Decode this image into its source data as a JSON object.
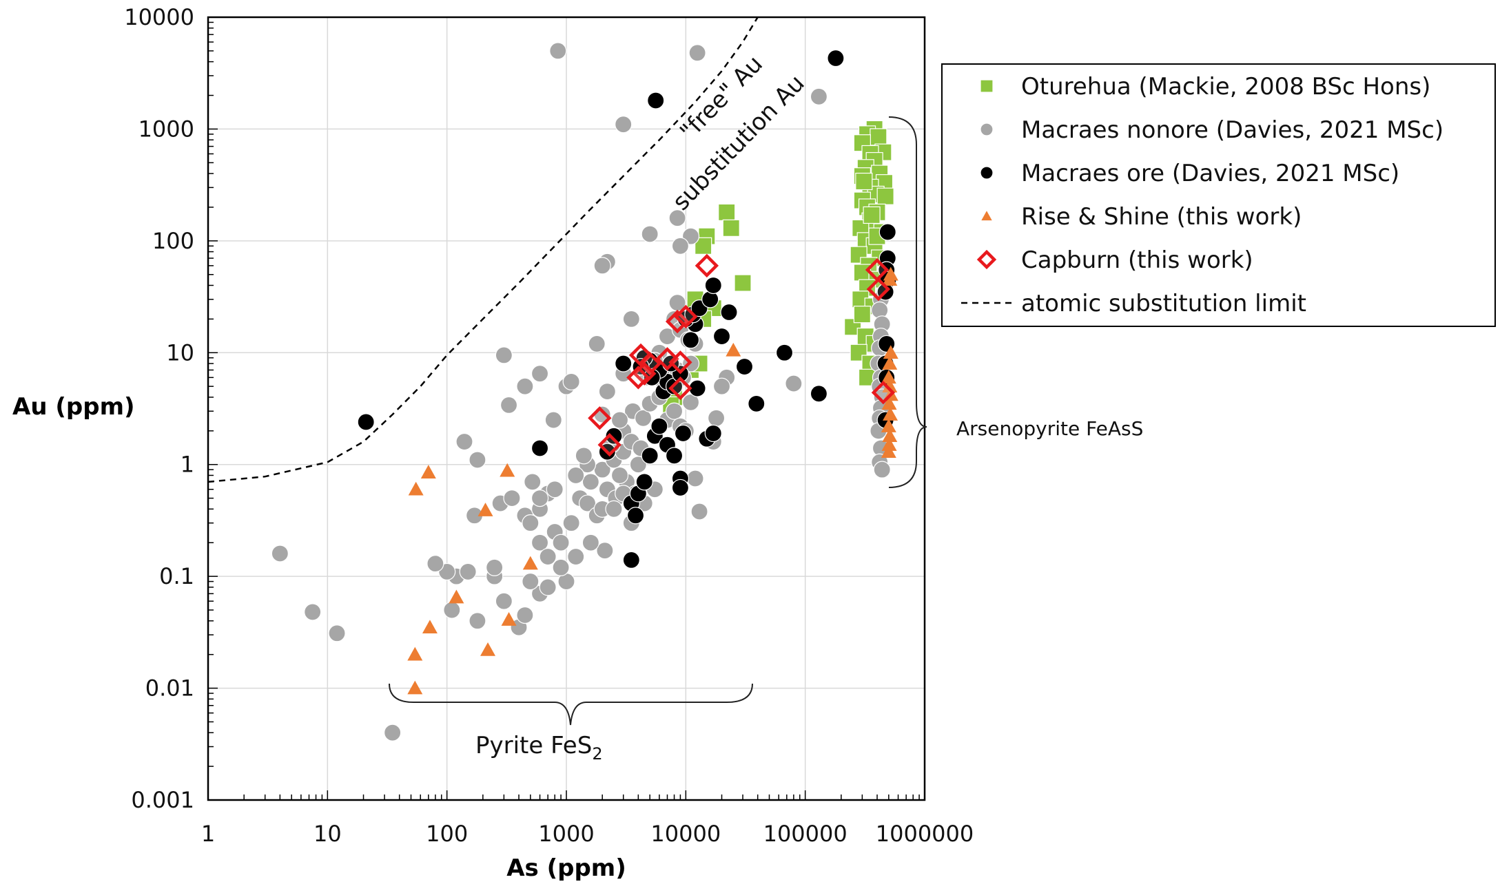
{
  "chart_data": {
    "type": "scatter",
    "title": "",
    "xlabel": "As (ppm)",
    "ylabel": "Au (ppm)",
    "xscale": "log",
    "yscale": "log",
    "xlim": [
      1,
      1000000
    ],
    "ylim": [
      0.001,
      10000
    ],
    "grid": true,
    "legend_position": "top-right",
    "x_tick_labels": [
      "1",
      "10",
      "100",
      "1000",
      "10000",
      "100000",
      "1000000"
    ],
    "y_tick_labels": [
      "0.001",
      "0.01",
      "0.1",
      "1",
      "10",
      "100",
      "1000",
      "10000"
    ],
    "annotations": {
      "free_au": "\"free\" Au",
      "substitution_au": "substitution Au",
      "arsenopyrite": "Arsenopyrite FeAsS",
      "pyrite_main": "Pyrite FeS",
      "pyrite_sub": "2"
    },
    "series": [
      {
        "name": "Oturehua (Mackie, 2008 BSc Hons)",
        "marker": "square",
        "color": "#8dc63f",
        "points": [
          [
            22000,
            180
          ],
          [
            24000,
            130
          ],
          [
            15000,
            110
          ],
          [
            14000,
            90
          ],
          [
            30000,
            42
          ],
          [
            17000,
            25
          ],
          [
            14000,
            20
          ],
          [
            12000,
            30
          ],
          [
            8000,
            4
          ],
          [
            7500,
            3.4
          ],
          [
            11000,
            7
          ],
          [
            13000,
            8
          ],
          [
            380000,
            1000
          ],
          [
            330000,
            900
          ],
          [
            410000,
            850
          ],
          [
            300000,
            750
          ],
          [
            450000,
            620
          ],
          [
            350000,
            600
          ],
          [
            380000,
            520
          ],
          [
            320000,
            450
          ],
          [
            420000,
            400
          ],
          [
            300000,
            380
          ],
          [
            460000,
            330
          ],
          [
            350000,
            300
          ],
          [
            390000,
            260
          ],
          [
            300000,
            230
          ],
          [
            470000,
            250
          ],
          [
            330000,
            200
          ],
          [
            400000,
            180
          ],
          [
            350000,
            150
          ],
          [
            290000,
            130
          ],
          [
            440000,
            120
          ],
          [
            320000,
            100
          ],
          [
            380000,
            90
          ],
          [
            280000,
            75
          ],
          [
            420000,
            70
          ],
          [
            340000,
            60
          ],
          [
            300000,
            52
          ],
          [
            400000,
            45
          ],
          [
            330000,
            38
          ],
          [
            290000,
            30
          ],
          [
            370000,
            26
          ],
          [
            250000,
            17
          ],
          [
            320000,
            14
          ],
          [
            380000,
            12
          ],
          [
            280000,
            10
          ],
          [
            350000,
            8
          ],
          [
            330000,
            6
          ],
          [
            300000,
            22
          ],
          [
            360000,
            170
          ],
          [
            310000,
            340
          ],
          [
            400000,
            110
          ]
        ]
      },
      {
        "name": "Macraes nonore (Davies, 2021 MSc)",
        "marker": "circle",
        "color": "#a6a6a6",
        "points": [
          [
            850,
            5000
          ],
          [
            12500,
            4800
          ],
          [
            3000,
            1100
          ],
          [
            130000,
            1950
          ],
          [
            5000,
            115
          ],
          [
            8500,
            160
          ],
          [
            11000,
            110
          ],
          [
            2200,
            65
          ],
          [
            2000,
            60
          ],
          [
            9000,
            90
          ],
          [
            4,
            0.16
          ],
          [
            7.5,
            0.048
          ],
          [
            12,
            0.031
          ],
          [
            35,
            0.004
          ],
          [
            140,
            1.6
          ],
          [
            180,
            1.1
          ],
          [
            170,
            0.35
          ],
          [
            120,
            0.1
          ],
          [
            100,
            0.11
          ],
          [
            80,
            0.13
          ],
          [
            150,
            0.11
          ],
          [
            250,
            0.1
          ],
          [
            300,
            0.06
          ],
          [
            250,
            0.12
          ],
          [
            180,
            0.04
          ],
          [
            110,
            0.05
          ],
          [
            400,
            0.035
          ],
          [
            450,
            0.045
          ],
          [
            600,
            0.07
          ],
          [
            500,
            0.09
          ],
          [
            280,
            0.45
          ],
          [
            350,
            0.5
          ],
          [
            450,
            0.35
          ],
          [
            500,
            0.3
          ],
          [
            600,
            0.2
          ],
          [
            700,
            0.15
          ],
          [
            800,
            0.25
          ],
          [
            1000,
            0.09
          ],
          [
            1200,
            0.15
          ],
          [
            900,
            0.2
          ],
          [
            600,
            0.4
          ],
          [
            700,
            0.55
          ],
          [
            1300,
            0.5
          ],
          [
            1500,
            0.45
          ],
          [
            1800,
            0.35
          ],
          [
            2000,
            0.4
          ],
          [
            1100,
            0.3
          ],
          [
            1600,
            0.7
          ],
          [
            2000,
            0.9
          ],
          [
            2500,
            1.1
          ],
          [
            3000,
            1.3
          ],
          [
            2200,
            0.6
          ],
          [
            2600,
            0.5
          ],
          [
            3200,
            0.7
          ],
          [
            3800,
            0.55
          ],
          [
            2800,
            0.8
          ],
          [
            1500,
            1.0
          ],
          [
            2400,
            1.5
          ],
          [
            3000,
            2.0
          ],
          [
            3500,
            1.6
          ],
          [
            4200,
            1.4
          ],
          [
            5500,
            1.8
          ],
          [
            3600,
            3.0
          ],
          [
            4400,
            2.6
          ],
          [
            2800,
            2.5
          ],
          [
            5000,
            3.5
          ],
          [
            6000,
            4.0
          ],
          [
            7000,
            2.5
          ],
          [
            8000,
            3.0
          ],
          [
            9000,
            2.2
          ],
          [
            10000,
            2.0
          ],
          [
            6500,
            5.5
          ],
          [
            7500,
            6.5
          ],
          [
            8500,
            7.0
          ],
          [
            9500,
            6.0
          ],
          [
            11000,
            8.0
          ],
          [
            12000,
            12.0
          ],
          [
            7000,
            14.0
          ],
          [
            8000,
            20.0
          ],
          [
            9000,
            16.0
          ],
          [
            6000,
            10.0
          ],
          [
            5500,
            8.5
          ],
          [
            4800,
            6.0
          ],
          [
            10500,
            13.0
          ],
          [
            8500,
            28.0
          ],
          [
            3500,
            20.0
          ],
          [
            3000,
            6.5
          ],
          [
            2200,
            4.5
          ],
          [
            2000,
            2.8
          ],
          [
            1000,
            5.0
          ],
          [
            1100,
            5.5
          ],
          [
            1800,
            12.0
          ],
          [
            600,
            6.5
          ],
          [
            450,
            5.0
          ],
          [
            300,
            9.5
          ],
          [
            330,
            3.4
          ],
          [
            780,
            2.5
          ],
          [
            520,
            0.7
          ],
          [
            600,
            0.5
          ],
          [
            800,
            0.6
          ],
          [
            1200,
            0.8
          ],
          [
            1400,
            1.2
          ],
          [
            2500,
            0.4
          ],
          [
            3500,
            0.3
          ],
          [
            2100,
            0.17
          ],
          [
            4500,
            0.45
          ],
          [
            5500,
            0.6
          ],
          [
            700,
            0.08
          ],
          [
            900,
            0.12
          ],
          [
            1600,
            0.2
          ],
          [
            13000,
            0.38
          ],
          [
            12000,
            0.75
          ],
          [
            17000,
            1.6
          ],
          [
            18000,
            2.6
          ],
          [
            22000,
            6.0
          ],
          [
            20000,
            5.0
          ],
          [
            80000,
            5.3
          ],
          [
            11000,
            3.6
          ],
          [
            4000,
            1.0
          ],
          [
            3000,
            0.55
          ],
          [
            430000,
            30
          ],
          [
            420000,
            24
          ],
          [
            440000,
            18
          ],
          [
            430000,
            14
          ],
          [
            420000,
            11
          ],
          [
            410000,
            8
          ],
          [
            430000,
            6
          ],
          [
            420000,
            5
          ],
          [
            440000,
            4
          ],
          [
            430000,
            3.2
          ],
          [
            420000,
            2.6
          ],
          [
            410000,
            2.0
          ],
          [
            430000,
            1.4
          ],
          [
            420000,
            1.05
          ],
          [
            440000,
            0.9
          ]
        ]
      },
      {
        "name": "Macraes ore (Davies, 2021 MSc)",
        "marker": "circle",
        "color": "#000000",
        "points": [
          [
            21,
            2.4
          ],
          [
            600,
            1.4
          ],
          [
            5600,
            1800
          ],
          [
            180000,
            4300
          ],
          [
            3500,
            0.14
          ],
          [
            3500,
            0.45
          ],
          [
            3800,
            0.35
          ],
          [
            4000,
            0.55
          ],
          [
            4500,
            0.7
          ],
          [
            5000,
            1.2
          ],
          [
            5500,
            1.8
          ],
          [
            6000,
            2.2
          ],
          [
            7000,
            1.5
          ],
          [
            8000,
            1.2
          ],
          [
            9000,
            0.75
          ],
          [
            9000,
            0.62
          ],
          [
            9500,
            1.9
          ],
          [
            6500,
            4.5
          ],
          [
            7000,
            5.5
          ],
          [
            8000,
            5.0
          ],
          [
            9000,
            6.5
          ],
          [
            6000,
            7.0
          ],
          [
            5000,
            8.5
          ],
          [
            4500,
            9.0
          ],
          [
            7500,
            8.0
          ],
          [
            11000,
            13.0
          ],
          [
            12000,
            18.0
          ],
          [
            10000,
            20.0
          ],
          [
            11500,
            22.0
          ],
          [
            13000,
            25.0
          ],
          [
            16000,
            30.0
          ],
          [
            17000,
            40.0
          ],
          [
            20000,
            14.0
          ],
          [
            23000,
            23.0
          ],
          [
            15000,
            1.7
          ],
          [
            17000,
            1.9
          ],
          [
            12500,
            4.8
          ],
          [
            31000,
            7.5
          ],
          [
            39000,
            3.5
          ],
          [
            67000,
            10.0
          ],
          [
            130000,
            4.3
          ],
          [
            3000,
            8.0
          ],
          [
            2500,
            1.8
          ],
          [
            2200,
            1.3
          ],
          [
            4200,
            7.5
          ],
          [
            5200,
            6.0
          ],
          [
            490000,
            120
          ],
          [
            490000,
            70
          ],
          [
            480000,
            55
          ],
          [
            495000,
            45
          ],
          [
            470000,
            35
          ],
          [
            480000,
            12
          ],
          [
            470000,
            8
          ],
          [
            480000,
            6
          ],
          [
            470000,
            2.5
          ]
        ]
      },
      {
        "name": "Rise & Shine (this work)",
        "marker": "triangle",
        "color": "#ed7d31",
        "points": [
          [
            54,
            0.01
          ],
          [
            54,
            0.02
          ],
          [
            72,
            0.035
          ],
          [
            55,
            0.6
          ],
          [
            70,
            0.85
          ],
          [
            320,
            0.88
          ],
          [
            210,
            0.39
          ],
          [
            500,
            0.13
          ],
          [
            120,
            0.065
          ],
          [
            330,
            0.041
          ],
          [
            220,
            0.022
          ],
          [
            25000,
            10.5
          ],
          [
            520000,
            10
          ],
          [
            510000,
            8
          ],
          [
            500000,
            6
          ],
          [
            510000,
            5
          ],
          [
            520000,
            4.2
          ],
          [
            505000,
            3.5
          ],
          [
            515000,
            2.8
          ],
          [
            500000,
            2.2
          ],
          [
            510000,
            1.8
          ],
          [
            505000,
            1.5
          ],
          [
            500000,
            1.3
          ],
          [
            520000,
            50
          ],
          [
            510000,
            45
          ]
        ]
      },
      {
        "name": "Capburn (this work)",
        "marker": "diamond",
        "color": "#e8191d",
        "points": [
          [
            15000,
            60
          ],
          [
            8500,
            19
          ],
          [
            10000,
            21
          ],
          [
            4200,
            9.5
          ],
          [
            5000,
            8.0
          ],
          [
            7000,
            8.8
          ],
          [
            9000,
            8.2
          ],
          [
            4500,
            6.5
          ],
          [
            4000,
            6.0
          ],
          [
            9000,
            4.8
          ],
          [
            1900,
            2.6
          ],
          [
            2300,
            1.5
          ],
          [
            400000,
            55
          ],
          [
            410000,
            37
          ],
          [
            450000,
            4.4
          ]
        ]
      },
      {
        "name": "atomic substitution limit",
        "marker": "dashed-line",
        "color": "#000000",
        "points": [
          [
            1,
            0.7
          ],
          [
            3,
            0.78
          ],
          [
            10,
            1.05
          ],
          [
            20,
            1.6
          ],
          [
            35,
            2.8
          ],
          [
            60,
            5
          ],
          [
            100,
            9.5
          ],
          [
            200,
            20
          ],
          [
            400,
            42
          ],
          [
            800,
            90
          ],
          [
            1500,
            180
          ],
          [
            3000,
            380
          ],
          [
            6000,
            800
          ],
          [
            12000,
            1750
          ],
          [
            20000,
            3300
          ],
          [
            30000,
            6000
          ],
          [
            40000,
            10000
          ]
        ]
      }
    ]
  }
}
